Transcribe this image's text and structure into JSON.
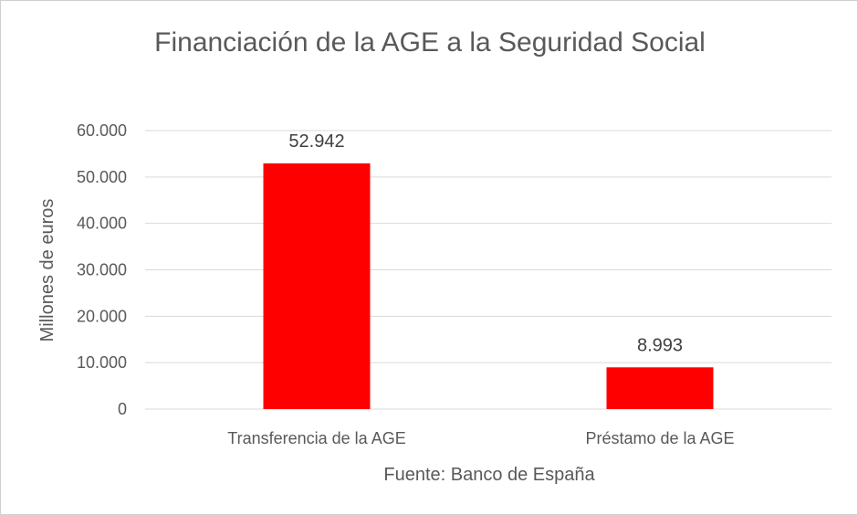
{
  "chart_data": {
    "type": "bar",
    "title": "Financiación de la AGE a la Seguridad Social",
    "xlabel": "Fuente: Banco de España",
    "ylabel": "Millones de euros",
    "categories": [
      "Transferencia de la AGE",
      "Préstamo de la AGE"
    ],
    "values": [
      52942,
      8993
    ],
    "value_labels": [
      "52.942",
      "8.993"
    ],
    "ylim": [
      0,
      60000
    ],
    "yticks": [
      0,
      10000,
      20000,
      30000,
      40000,
      50000,
      60000
    ],
    "ytick_labels": [
      "0",
      "10.000",
      "20.000",
      "30.000",
      "40.000",
      "50.000",
      "60.000"
    ],
    "grid": true,
    "legend": "none",
    "colors": {
      "bar": "#ff0000",
      "grid": "#d9d9d9",
      "text": "#595959"
    }
  }
}
